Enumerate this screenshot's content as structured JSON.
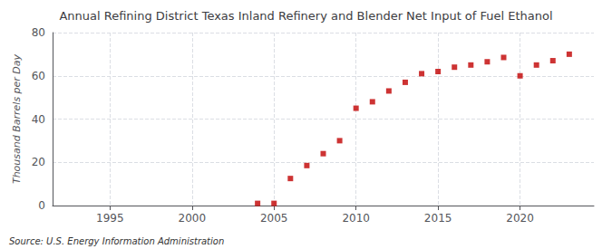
{
  "chart_data": {
    "type": "scatter",
    "title": "Annual Refining District Texas Inland Refinery and Blender Net Input of Fuel Ethanol",
    "ylabel": "Thousand Barrels per Day",
    "annotations": [
      "Source: U.S. Energy Information Administration"
    ],
    "x": [
      2004,
      2005,
      2006,
      2007,
      2008,
      2009,
      2010,
      2011,
      2012,
      2013,
      2014,
      2015,
      2016,
      2017,
      2018,
      2019,
      2020,
      2021,
      2022,
      2023
    ],
    "values": [
      1.0,
      1.0,
      12.5,
      18.5,
      24.0,
      30.0,
      45.0,
      48.0,
      53.0,
      57.0,
      61.0,
      62.0,
      64.0,
      65.0,
      66.5,
      68.5,
      60.0,
      65.0,
      67.0,
      70.0
    ],
    "color": "#c00000",
    "marker": "square",
    "xlim": [
      1991.5,
      2024.5
    ],
    "xticks": [
      1995,
      2000,
      2005,
      2010,
      2015,
      2020
    ],
    "ylim": [
      0,
      80
    ],
    "yticks": [
      0,
      20,
      40,
      60,
      80
    ],
    "grid": true
  }
}
